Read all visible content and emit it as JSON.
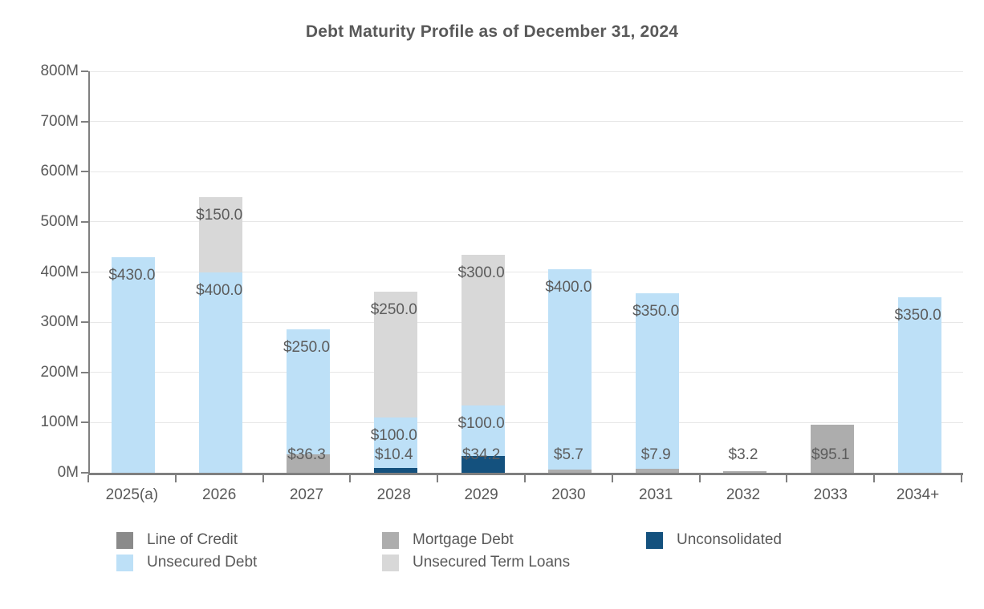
{
  "title": "Debt Maturity Profile as of December 31, 2024",
  "chart_data": {
    "type": "bar",
    "stacked": true,
    "title": "Debt Maturity Profile as of December 31, 2024",
    "categories": [
      "2025(a)",
      "2026",
      "2027",
      "2028",
      "2029",
      "2030",
      "2031",
      "2032",
      "2033",
      "2034+"
    ],
    "series": [
      {
        "name": "Unconsolidated",
        "color": "#14517E",
        "values": [
          0,
          0,
          0,
          10.4,
          34.2,
          0,
          0,
          0,
          0,
          0
        ]
      },
      {
        "name": "Mortgage Debt",
        "color": "#ADADAD",
        "values": [
          0,
          0,
          36.3,
          0,
          0,
          5.7,
          7.9,
          3.2,
          95.1,
          0
        ]
      },
      {
        "name": "Unsecured Debt",
        "color": "#BDE0F7",
        "values": [
          430.0,
          400.0,
          250.0,
          100.0,
          100.0,
          400.0,
          350.0,
          0,
          0,
          350.0
        ]
      },
      {
        "name": "Unsecured Term Loans",
        "color": "#D8D8D8",
        "values": [
          0,
          150.0,
          0,
          250.0,
          300.0,
          0,
          0,
          0,
          0,
          0
        ]
      },
      {
        "name": "Line of Credit",
        "color": "#8A8A8A",
        "values": [
          0,
          0,
          0,
          0,
          0,
          0,
          0,
          0,
          0,
          0
        ]
      }
    ],
    "value_label_prefix": "$",
    "value_label_decimals": 1,
    "ylim": [
      0,
      800
    ],
    "ytick_step": 100,
    "ytick_labels": [
      "0M",
      "100M",
      "200M",
      "300M",
      "400M",
      "500M",
      "600M",
      "700M",
      "800M"
    ],
    "grid": true,
    "legend_position": "bottom",
    "legend_columns": [
      [
        "Line of Credit",
        "Unsecured Debt"
      ],
      [
        "Mortgage Debt",
        "Unsecured Term Loans"
      ],
      [
        "Unconsolidated"
      ]
    ],
    "colors": {
      "text": "#595959",
      "value_label_text": "#5C5C5C",
      "axis": "#7F7F7F",
      "grid": "#E7E7E7",
      "background": "#FFFFFF"
    }
  }
}
